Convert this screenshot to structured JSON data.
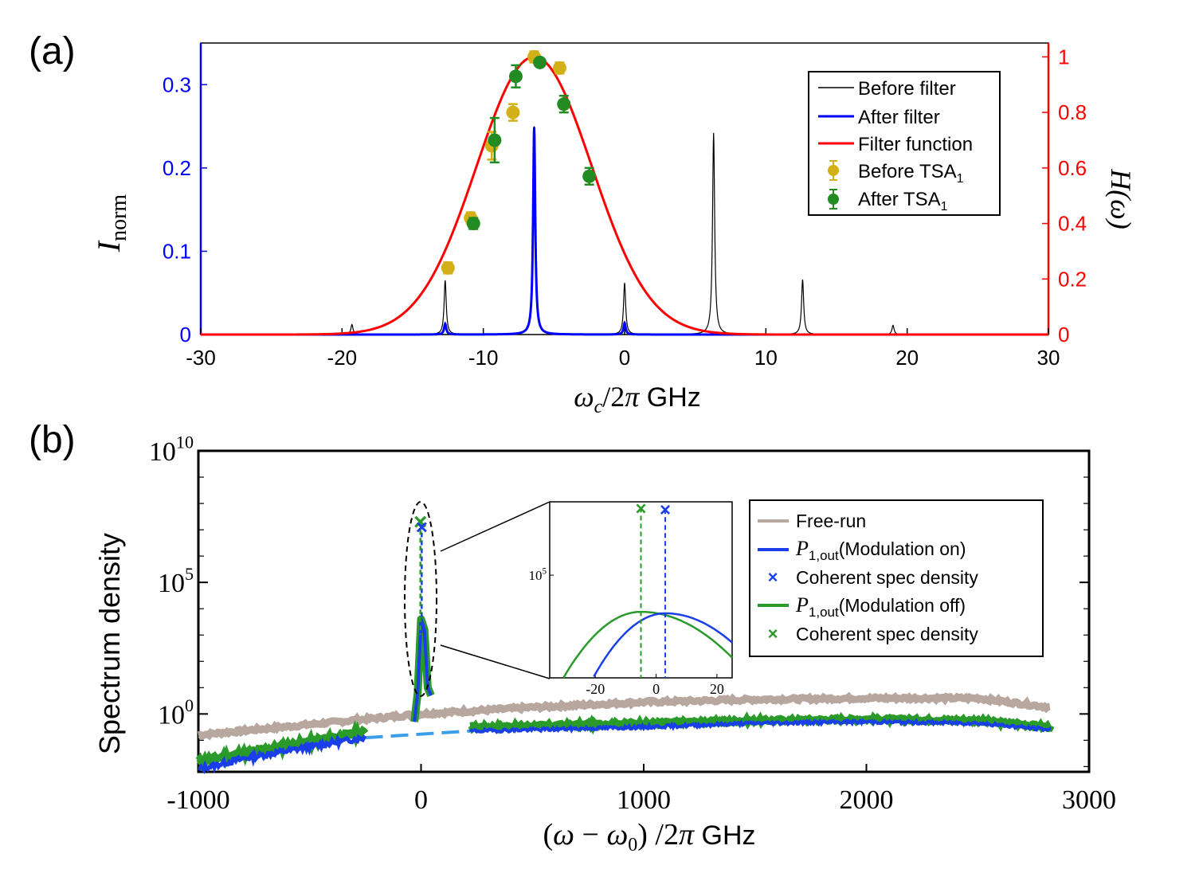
{
  "chart_data": [
    {
      "panel_label": "(a)",
      "type": "line",
      "xlabel": "ωc/2π  GHz",
      "ylabel_left": "Inorm",
      "ylabel_right": "H(ω)",
      "xlim": [
        -30,
        30
      ],
      "ylim_left": [
        0,
        0.35
      ],
      "ylim_right": [
        0,
        1.05
      ],
      "x_ticks": [
        "-30",
        "-20",
        "-10",
        "0",
        "10",
        "20",
        "30"
      ],
      "y_left_ticks": [
        "0",
        "0.1",
        "0.2",
        "0.3"
      ],
      "y_right_ticks": [
        "0",
        "0.2",
        "0.4",
        "0.6",
        "0.8",
        "1"
      ],
      "colors": {
        "left_axis": "#0000ff",
        "right_axis": "#ff0000",
        "before_filter": "#000000",
        "after_filter": "#0000ff",
        "filter_function": "#ff0000",
        "before_tsa": "#d4b018",
        "after_tsa": "#228b22"
      },
      "legend": {
        "placement": "top-right",
        "entries": [
          "Before filter",
          "After filter",
          "Filter function",
          "Before TSA",
          "After TSA"
        ],
        "subscript": "1"
      },
      "series": [
        {
          "name": "Before filter",
          "axis": "left",
          "peaks": [
            {
              "x": -19.3,
              "y": 0.012
            },
            {
              "x": -12.7,
              "y": 0.065
            },
            {
              "x": -6.4,
              "y": 0.25
            },
            {
              "x": 0.0,
              "y": 0.062
            },
            {
              "x": 6.3,
              "y": 0.242
            },
            {
              "x": 12.6,
              "y": 0.066
            },
            {
              "x": 19.0,
              "y": 0.011
            }
          ]
        },
        {
          "name": "After filter",
          "axis": "left",
          "peaks": [
            {
              "x": -12.7,
              "y": 0.013
            },
            {
              "x": -6.4,
              "y": 0.249
            },
            {
              "x": 0.0,
              "y": 0.014
            }
          ]
        },
        {
          "name": "Filter function",
          "axis": "right",
          "center": -6.4,
          "fwhm": 9.6,
          "x": [
            -30,
            -20,
            -18,
            -16,
            -14,
            -12,
            -10,
            -8,
            -6.4,
            -4,
            -2,
            0,
            2,
            4,
            6,
            10,
            30
          ],
          "y": [
            0,
            0,
            0.004,
            0.035,
            0.14,
            0.38,
            0.67,
            0.92,
            1.0,
            0.88,
            0.56,
            0.25,
            0.08,
            0.015,
            0,
            0,
            0
          ]
        },
        {
          "name": "Before TSA",
          "axis": "right",
          "x": [
            -12.5,
            -10.9,
            -9.4,
            -7.9,
            -6.4,
            -4.6
          ],
          "y": [
            0.24,
            0.42,
            0.68,
            0.8,
            1.0,
            0.96
          ],
          "err": [
            0.02,
            0.02,
            0.05,
            0.03,
            0.02,
            0.02
          ]
        },
        {
          "name": "After TSA",
          "axis": "right",
          "x": [
            -10.7,
            -9.2,
            -7.7,
            -6.0,
            -4.3,
            -2.5
          ],
          "y": [
            0.4,
            0.7,
            0.93,
            0.98,
            0.83,
            0.57
          ],
          "err": [
            0.02,
            0.08,
            0.04,
            0.01,
            0.03,
            0.03
          ]
        }
      ]
    },
    {
      "panel_label": "(b)",
      "type": "line",
      "xlabel": "(ω − ω0) /2π  GHz",
      "ylabel": "Spectrum density",
      "xlim": [
        -1000,
        3000
      ],
      "yscale": "log",
      "ylim_log10": [
        -2.2,
        10
      ],
      "x_ticks": [
        "-1000",
        "0",
        "1000",
        "2000",
        "3000"
      ],
      "y_ticks": [
        {
          "base": "10",
          "exp": "0"
        },
        {
          "base": "10",
          "exp": "5"
        },
        {
          "base": "10",
          "exp": "10"
        }
      ],
      "colors": {
        "free_run": "#b7a79f",
        "modulation_on": "#1a3ee8",
        "modulation_off": "#2a9a2a",
        "gap": "#3a9ee8"
      },
      "legend": {
        "placement": "right",
        "entries": [
          "Free-run",
          "P",
          "(Modulation on)",
          "Coherent spec density",
          "P",
          "(Modulation off)",
          "Coherent spec density"
        ],
        "p_subscript": "1,out"
      },
      "series": [
        {
          "name": "Free-run",
          "x": [
            -1000,
            -500,
            0,
            500,
            1000,
            1500,
            2000,
            2500,
            2830
          ],
          "y_log10": [
            -0.8,
            -0.4,
            0.0,
            0.25,
            0.45,
            0.55,
            0.6,
            0.6,
            0.25
          ]
        },
        {
          "name": "P1,out (Modulation on)",
          "x": [
            -1000,
            -800,
            -600,
            -400,
            -250,
            220,
            500,
            1000,
            1500,
            2000,
            2500,
            2830
          ],
          "y_log10": [
            -2.1,
            -1.7,
            -1.4,
            -1.1,
            -0.9,
            -0.65,
            -0.6,
            -0.5,
            -0.35,
            -0.3,
            -0.35,
            -0.6
          ]
        },
        {
          "name": "P1,out (Modulation off)",
          "x": [
            -1000,
            -800,
            -600,
            -400,
            -250,
            220,
            500,
            1000,
            1500,
            2000,
            2500,
            2830
          ],
          "y_log10": [
            -1.8,
            -1.5,
            -1.2,
            -0.9,
            -0.7,
            -0.5,
            -0.45,
            -0.35,
            -0.25,
            -0.2,
            -0.25,
            -0.5
          ]
        },
        {
          "name": "Coherent spec density (on)",
          "x": 3,
          "y_log10": 7.2
        },
        {
          "name": "Coherent spec density (off)",
          "x": -3,
          "y_log10": 7.3
        }
      ],
      "inset": {
        "xlim": [
          -35,
          25
        ],
        "x_ticks": [
          "-20",
          "0",
          "20"
        ],
        "y_ticks": [
          {
            "base": "10",
            "exp": "5"
          }
        ],
        "ylim_log10": [
          1.5,
          7.5
        ],
        "curves": [
          {
            "name": "on",
            "peak_x": 3,
            "peak_y_log10": 3.7
          },
          {
            "name": "off",
            "peak_x": -5,
            "peak_y_log10": 3.75
          }
        ],
        "markers": [
          {
            "name": "on",
            "x": 3,
            "y_log10": 7.25
          },
          {
            "name": "off",
            "x": -5,
            "y_log10": 7.3
          }
        ]
      }
    }
  ]
}
